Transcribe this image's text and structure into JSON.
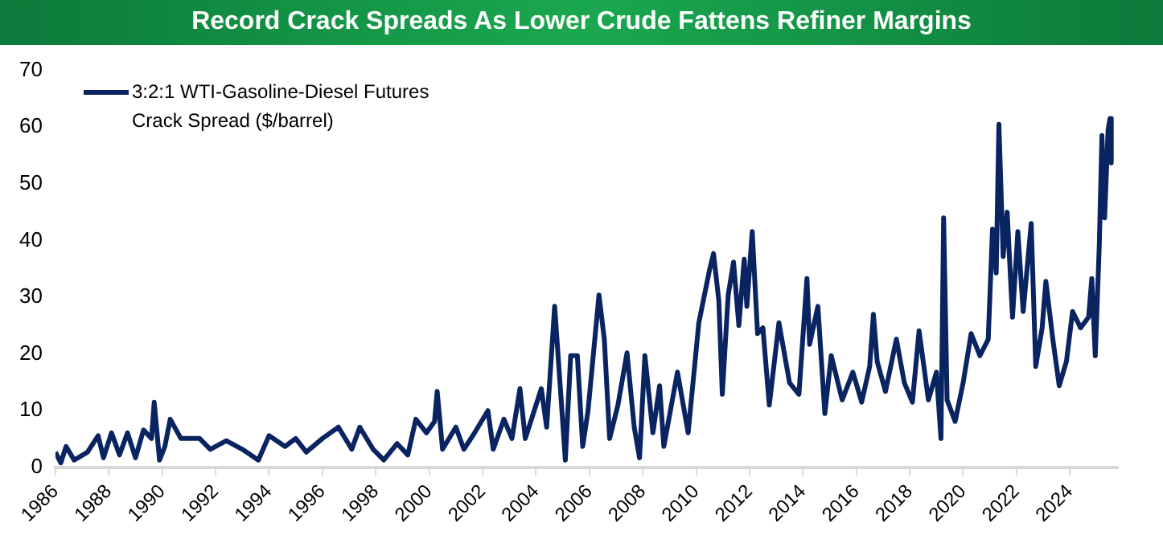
{
  "chart_data": {
    "type": "line",
    "title": "Record Crack Spreads As Lower Crude Fattens Refiner Margins",
    "x": [
      1986.0,
      1986.2,
      1986.4,
      1986.7,
      1987.2,
      1987.6,
      1987.8,
      1988.1,
      1988.4,
      1988.7,
      1989.0,
      1989.3,
      1989.6,
      1989.7,
      1989.9,
      1990.1,
      1990.3,
      1990.7,
      1991.4,
      1991.8,
      1992.4,
      1993.0,
      1993.6,
      1994.0,
      1994.6,
      1995.0,
      1995.4,
      1996.0,
      1996.6,
      1997.1,
      1997.4,
      1997.9,
      1998.3,
      1998.8,
      1999.2,
      1999.5,
      1999.9,
      2000.2,
      2000.3,
      2000.5,
      2001.0,
      2001.3,
      2001.7,
      2002.2,
      2002.4,
      2002.8,
      2003.1,
      2003.4,
      2003.6,
      2004.2,
      2004.4,
      2004.7,
      2004.9,
      2005.1,
      2005.3,
      2005.55,
      2005.75,
      2005.95,
      2006.36,
      2006.56,
      2006.76,
      2007.07,
      2007.41,
      2007.68,
      2007.88,
      2008.08,
      2008.38,
      2008.63,
      2008.79,
      2009.3,
      2009.7,
      2010.1,
      2010.5,
      2010.65,
      2010.85,
      2010.98,
      2011.2,
      2011.4,
      2011.6,
      2011.8,
      2011.9,
      2012.1,
      2012.3,
      2012.5,
      2012.74,
      2013.1,
      2013.5,
      2013.85,
      2014.15,
      2014.25,
      2014.56,
      2014.82,
      2015.06,
      2015.47,
      2015.87,
      2016.2,
      2016.5,
      2016.64,
      2016.78,
      2017.09,
      2017.5,
      2017.8,
      2018.1,
      2018.35,
      2018.7,
      2019.0,
      2019.17,
      2019.27,
      2019.4,
      2019.7,
      2020.0,
      2020.3,
      2020.63,
      2020.94,
      2021.1,
      2021.24,
      2021.34,
      2021.5,
      2021.65,
      2021.85,
      2022.05,
      2022.25,
      2022.55,
      2022.72,
      2022.96,
      2023.1,
      2023.36,
      2023.6,
      2023.87,
      2024.1,
      2024.4,
      2024.7,
      2024.82,
      2024.95,
      2025.1,
      2025.2,
      2025.3,
      2025.43,
      2025.5,
      2025.55
    ],
    "series": [
      {
        "name": "3:2:1 WTI-Gasoline-Diesel Futures Crack Spread ($/barrel)",
        "color": "#0a2461",
        "values": [
          2.7,
          0.8,
          3.7,
          1.3,
          2.7,
          5.6,
          1.7,
          6.1,
          2.2,
          6.1,
          1.7,
          6.6,
          5.1,
          11.5,
          1.3,
          3.7,
          8.5,
          5.1,
          5.1,
          3.2,
          4.7,
          3.2,
          1.3,
          5.6,
          3.7,
          5.1,
          2.7,
          5.1,
          7.1,
          3.2,
          7.1,
          3.2,
          1.3,
          4.2,
          2.2,
          8.5,
          6.1,
          8.1,
          13.4,
          3.2,
          7.1,
          3.2,
          6.1,
          10.0,
          3.2,
          8.5,
          5.1,
          13.9,
          5.1,
          13.9,
          7.1,
          28.4,
          14.9,
          1.3,
          19.7,
          19.7,
          3.7,
          10.0,
          30.4,
          22.6,
          5.1,
          11.0,
          20.2,
          7.1,
          1.7,
          19.7,
          6.1,
          14.4,
          3.7,
          16.8,
          6.1,
          25.5,
          34.8,
          37.7,
          29.4,
          12.9,
          30.4,
          36.2,
          25.0,
          36.7,
          28.4,
          41.6,
          23.6,
          24.6,
          11.0,
          25.5,
          14.9,
          12.9,
          33.3,
          21.7,
          28.4,
          9.5,
          19.7,
          11.9,
          16.8,
          11.5,
          17.8,
          27.0,
          18.7,
          13.4,
          22.6,
          14.9,
          11.5,
          24.1,
          11.9,
          16.8,
          5.1,
          44.0,
          11.9,
          8.1,
          14.9,
          23.6,
          19.7,
          22.6,
          42.0,
          34.3,
          60.5,
          37.2,
          45.0,
          26.5,
          41.6,
          27.5,
          43.0,
          17.8,
          24.6,
          32.8,
          22.6,
          14.4,
          18.7,
          27.5,
          24.6,
          26.5,
          33.3,
          19.7,
          39.1,
          58.5,
          44.0,
          59.5,
          61.5,
          53.7
        ]
      }
    ],
    "xlim": [
      1986,
      2025.8
    ],
    "xticks": [
      1986,
      1988,
      1990,
      1992,
      1994,
      1996,
      1998,
      2000,
      2002,
      2004,
      2006,
      2008,
      2010,
      2012,
      2014,
      2016,
      2018,
      2020,
      2022,
      2024
    ],
    "ylim": [
      0,
      70
    ],
    "yticks": [
      0,
      10,
      20,
      30,
      40,
      50,
      60,
      70
    ],
    "grid": false,
    "legend": "top left",
    "marker": "none",
    "line_style": "solid"
  }
}
